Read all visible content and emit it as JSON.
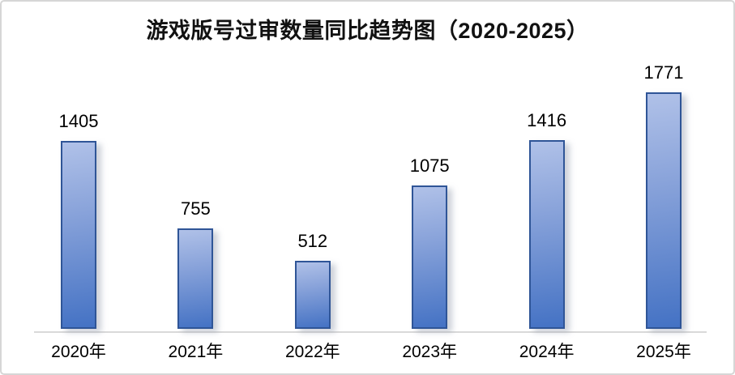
{
  "chart_data": {
    "type": "bar",
    "title": "游戏版号过审数量同比趋势图（2020-2025）",
    "categories": [
      "2020年",
      "2021年",
      "2022年",
      "2023年",
      "2024年",
      "2025年"
    ],
    "values": [
      1405,
      755,
      512,
      1075,
      1416,
      1771
    ],
    "xlabel": "",
    "ylabel": "",
    "ylim": [
      0,
      1771
    ],
    "grid": false,
    "legend": false,
    "value_labels_shown": true,
    "y_axis_shown": false,
    "colors": {
      "bar_fill_top": "#b0c1e8",
      "bar_fill_bottom": "#4472c4",
      "bar_border": "#2f5597",
      "axis_line": "#d9d9d9",
      "title_text": "#111111",
      "label_text": "#000000",
      "background": "#ffffff",
      "frame_border": "#d6d6d6"
    }
  }
}
